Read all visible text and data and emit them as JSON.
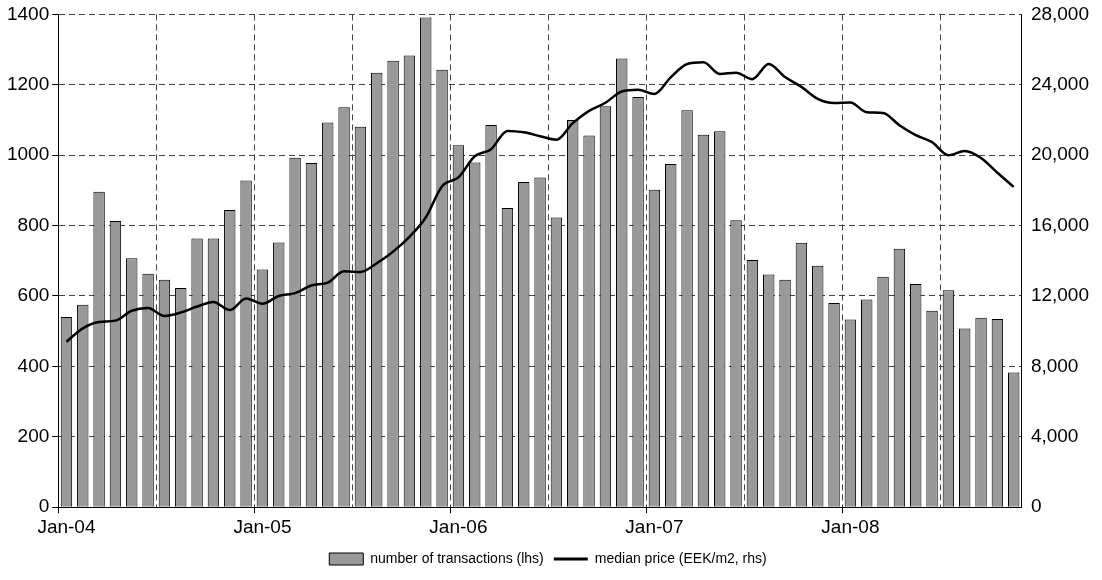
{
  "chart_data": {
    "type": "bar",
    "categories": [
      "Jan-04",
      null,
      null,
      null,
      null,
      null,
      null,
      null,
      null,
      null,
      null,
      null,
      "Jan-05",
      null,
      null,
      null,
      null,
      null,
      null,
      null,
      null,
      null,
      null,
      null,
      "Jan-06",
      null,
      null,
      null,
      null,
      null,
      null,
      null,
      null,
      null,
      null,
      null,
      "Jan-07",
      null,
      null,
      null,
      null,
      null,
      null,
      null,
      null,
      null,
      null,
      null,
      "Jan-08",
      null,
      null,
      null,
      null,
      null,
      null,
      null,
      null,
      null,
      null
    ],
    "series": [
      {
        "name": "number of transactions (lhs)",
        "color": "#999999",
        "values": [
          540,
          575,
          896,
          813,
          707,
          663,
          646,
          623,
          763,
          763,
          844,
          928,
          675,
          752,
          993,
          978,
          1093,
          1136,
          1081,
          1234,
          1268,
          1283,
          1391,
          1243,
          1028,
          979,
          1086,
          850,
          924,
          937,
          823,
          1100,
          1056,
          1139,
          1275,
          1165,
          902,
          975,
          1128,
          1058,
          1068,
          815,
          702,
          661,
          646,
          751,
          686,
          580,
          533,
          590,
          655,
          734,
          634,
          558,
          616,
          508,
          538,
          535,
          383
        ]
      },
      {
        "name": "median price (EEK/m2, rhs)",
        "type": "line",
        "axis": "y2",
        "color": "#000000",
        "values": [
          9400,
          10160,
          10520,
          10600,
          11160,
          11320,
          10860,
          11060,
          11400,
          11660,
          11200,
          11860,
          11560,
          12000,
          12160,
          12600,
          12760,
          13400,
          13360,
          13860,
          14520,
          15360,
          16460,
          18240,
          18740,
          19940,
          20340,
          21380,
          21300,
          21080,
          20880,
          21820,
          22520,
          22980,
          23620,
          23720,
          23480,
          24420,
          25180,
          25280,
          24620,
          24680,
          24320,
          25180,
          24440,
          23880,
          23200,
          22960,
          23000,
          22440,
          22400,
          21700,
          21140,
          20740,
          20000,
          20240,
          19840,
          19000,
          18200
        ]
      }
    ],
    "ylim": [
      0,
      1400
    ],
    "yticks": [
      0,
      200,
      400,
      600,
      800,
      1000,
      1200,
      1400
    ],
    "y2lim": [
      0,
      28000
    ],
    "y2ticks": [
      {
        "value": 0,
        "label": "0"
      },
      {
        "value": 4000,
        "label": "4,000"
      },
      {
        "value": 8000,
        "label": "8,000"
      },
      {
        "value": 12000,
        "label": "12,000"
      },
      {
        "value": 16000,
        "label": "16,000"
      },
      {
        "value": 20000,
        "label": "20,000"
      },
      {
        "value": 24000,
        "label": "24,000"
      },
      {
        "value": 28000,
        "label": "28,000"
      }
    ],
    "grid": true,
    "legend": "bottom",
    "marker": "none"
  }
}
